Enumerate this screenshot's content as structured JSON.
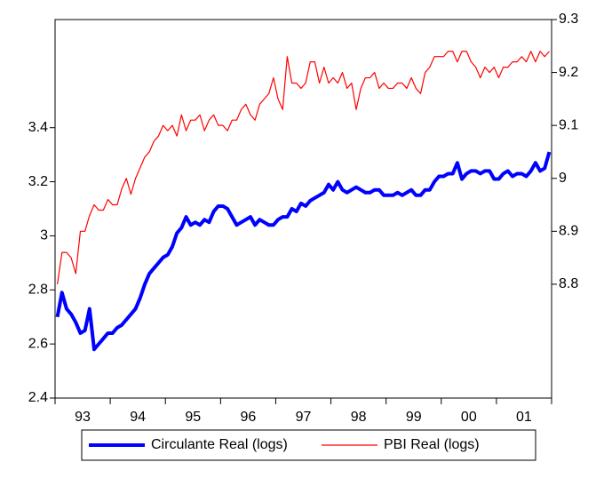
{
  "chart_data": {
    "type": "line",
    "categories": [
      null,
      null,
      null,
      null,
      null,
      null,
      "93",
      null,
      null,
      null,
      null,
      null,
      null,
      null,
      null,
      null,
      null,
      null,
      "94",
      null,
      null,
      null,
      null,
      null,
      null,
      null,
      null,
      null,
      null,
      null,
      "95",
      null,
      null,
      null,
      null,
      null,
      null,
      null,
      null,
      null,
      null,
      null,
      "96",
      null,
      null,
      null,
      null,
      null,
      null,
      null,
      null,
      null,
      null,
      null,
      "97",
      null,
      null,
      null,
      null,
      null,
      null,
      null,
      null,
      null,
      null,
      null,
      "98",
      null,
      null,
      null,
      null,
      null,
      null,
      null,
      null,
      null,
      null,
      null,
      "99",
      null,
      null,
      null,
      null,
      null,
      null,
      null,
      null,
      null,
      null,
      null,
      "00",
      null,
      null,
      null,
      null,
      null,
      null,
      null,
      null,
      null,
      null,
      null,
      "01",
      null,
      null,
      null,
      null,
      null
    ],
    "ylim": [
      2.4,
      3.8
    ],
    "yticks": [
      2.4,
      2.6,
      2.8,
      3.0,
      3.2,
      3.4
    ],
    "y2lim": [
      8.585,
      9.3
    ],
    "y2ticks": [
      8.8,
      8.9,
      9.0,
      9.1,
      9.2,
      9.3
    ],
    "series": [
      {
        "name": "Circulante Real (logs)",
        "color": "#0000ff",
        "values": [
          2.7,
          2.79,
          2.73,
          2.71,
          2.68,
          2.64,
          2.65,
          2.73,
          2.58,
          2.6,
          2.62,
          2.64,
          2.64,
          2.66,
          2.67,
          2.69,
          2.71,
          2.73,
          2.77,
          2.82,
          2.86,
          2.88,
          2.9,
          2.92,
          2.93,
          2.96,
          3.01,
          3.03,
          3.07,
          3.04,
          3.05,
          3.04,
          3.06,
          3.05,
          3.09,
          3.11,
          3.11,
          3.1,
          3.07,
          3.04,
          3.05,
          3.06,
          3.07,
          3.04,
          3.06,
          3.05,
          3.04,
          3.04,
          3.06,
          3.07,
          3.07,
          3.1,
          3.09,
          3.12,
          3.11,
          3.13,
          3.14,
          3.15,
          3.16,
          3.19,
          3.17,
          3.2,
          3.17,
          3.16,
          3.17,
          3.18,
          3.17,
          3.16,
          3.16,
          3.17,
          3.17,
          3.15,
          3.15,
          3.15,
          3.16,
          3.15,
          3.16,
          3.17,
          3.15,
          3.15,
          3.17,
          3.17,
          3.2,
          3.22,
          3.22,
          3.23,
          3.23,
          3.27,
          3.21,
          3.23,
          3.24,
          3.24,
          3.23,
          3.24,
          3.24,
          3.21,
          3.21,
          3.23,
          3.24,
          3.22,
          3.23,
          3.23,
          3.22,
          3.24,
          3.27,
          3.24,
          3.25,
          3.31
        ]
      },
      {
        "name": "PBI Real (logs)",
        "color": "#ff0000",
        "axis": "y2",
        "values": [
          8.8,
          8.86,
          8.86,
          8.85,
          8.82,
          8.9,
          8.9,
          8.93,
          8.95,
          8.94,
          8.94,
          8.96,
          8.95,
          8.95,
          8.98,
          9.0,
          8.97,
          9.0,
          9.02,
          9.04,
          9.05,
          9.07,
          9.08,
          9.1,
          9.09,
          9.1,
          9.08,
          9.12,
          9.09,
          9.11,
          9.11,
          9.12,
          9.09,
          9.11,
          9.12,
          9.1,
          9.1,
          9.09,
          9.11,
          9.11,
          9.13,
          9.14,
          9.12,
          9.11,
          9.14,
          9.15,
          9.16,
          9.19,
          9.15,
          9.13,
          9.23,
          9.18,
          9.18,
          9.17,
          9.18,
          9.22,
          9.22,
          9.18,
          9.21,
          9.18,
          9.19,
          9.18,
          9.2,
          9.17,
          9.18,
          9.13,
          9.17,
          9.19,
          9.19,
          9.2,
          9.17,
          9.18,
          9.17,
          9.17,
          9.18,
          9.18,
          9.17,
          9.19,
          9.17,
          9.16,
          9.2,
          9.21,
          9.23,
          9.23,
          9.23,
          9.24,
          9.24,
          9.22,
          9.24,
          9.24,
          9.22,
          9.21,
          9.19,
          9.21,
          9.2,
          9.21,
          9.19,
          9.21,
          9.21,
          9.22,
          9.22,
          9.23,
          9.22,
          9.24,
          9.22,
          9.24,
          9.23,
          9.24
        ]
      }
    ]
  }
}
